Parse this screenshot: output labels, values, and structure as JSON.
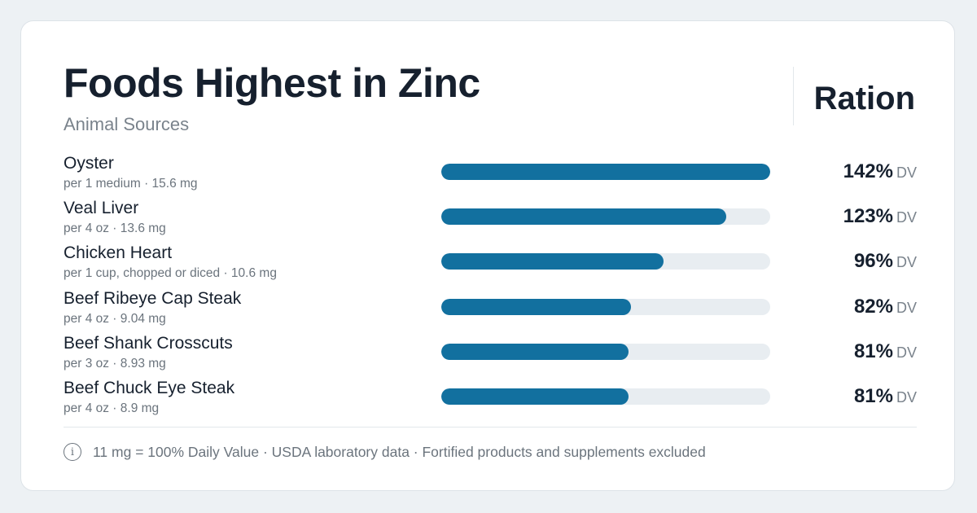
{
  "card": {
    "title": "Foods Highest in Zinc",
    "subtitle": "Animal Sources",
    "brand": "Ration"
  },
  "chart_data": {
    "type": "bar",
    "orientation": "horizontal",
    "title": "Foods Highest in Zinc",
    "subtitle": "Animal Sources",
    "unit": "DV",
    "xlim": [
      0,
      142
    ],
    "grid": false,
    "categories": [
      "Oyster",
      "Veal Liver",
      "Chicken Heart",
      "Beef Ribeye Cap Steak",
      "Beef Shank Crosscuts",
      "Beef Chuck Eye Steak"
    ],
    "values": [
      142,
      123,
      96,
      82,
      81,
      81
    ],
    "rows": [
      {
        "name": "Oyster",
        "meta": "per 1 medium · 15.6 mg",
        "dv": 142,
        "dv_label": "142%",
        "unit": "DV"
      },
      {
        "name": "Veal Liver",
        "meta": "per 4 oz · 13.6 mg",
        "dv": 123,
        "dv_label": "123%",
        "unit": "DV"
      },
      {
        "name": "Chicken Heart",
        "meta": "per 1 cup, chopped or diced · 10.6 mg",
        "dv": 96,
        "dv_label": "96%",
        "unit": "DV"
      },
      {
        "name": "Beef Ribeye Cap Steak",
        "meta": "per 4 oz · 9.04 mg",
        "dv": 82,
        "dv_label": "82%",
        "unit": "DV"
      },
      {
        "name": "Beef Shank Crosscuts",
        "meta": "per 3 oz · 8.93 mg",
        "dv": 81,
        "dv_label": "81%",
        "unit": "DV"
      },
      {
        "name": "Beef Chuck Eye Steak",
        "meta": "per 4 oz · 8.9 mg",
        "dv": 81,
        "dv_label": "81%",
        "unit": "DV"
      }
    ],
    "colors": {
      "bar": "#12709f",
      "track": "#e8edf1"
    }
  },
  "footer": {
    "icon": "info-icon",
    "icon_glyph": "i",
    "text": "11 mg = 100% Daily Value · USDA laboratory data · Fortified products and supplements excluded"
  }
}
